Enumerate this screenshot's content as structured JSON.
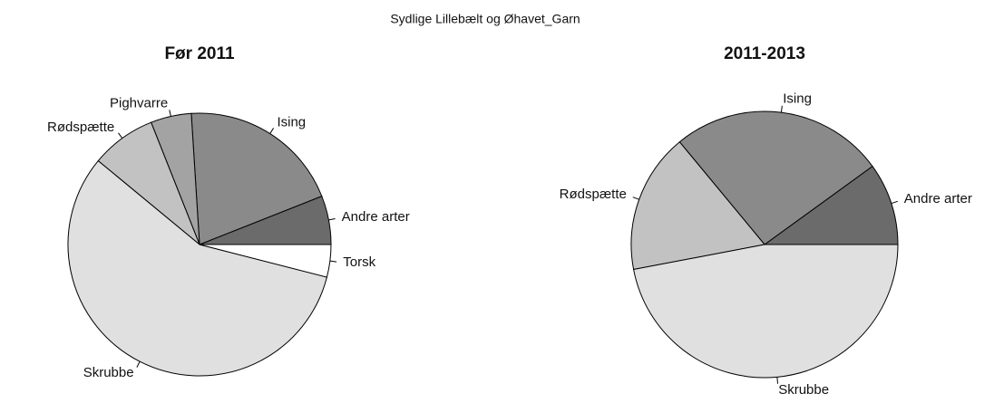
{
  "title": "Sydlige Lillebælt og Øhavet_Garn",
  "chart_data": [
    {
      "type": "pie",
      "title": "Før 2011",
      "categories": [
        "Andre arter",
        "Ising",
        "Pighvarre",
        "Rødspætte",
        "Skrubbe",
        "Torsk"
      ],
      "values": [
        6,
        20,
        5,
        8,
        57,
        4
      ],
      "colors": [
        "#6b6b6b",
        "#8a8a8a",
        "#a3a3a3",
        "#c2c2c2",
        "#e0e0e0",
        "#ffffff"
      ]
    },
    {
      "type": "pie",
      "title": "2011-2013",
      "categories": [
        "Andre arter",
        "Ising",
        "Rødspætte",
        "Skrubbe"
      ],
      "values": [
        10,
        26,
        17,
        47
      ],
      "colors": [
        "#6b6b6b",
        "#8a8a8a",
        "#c2c2c2",
        "#e0e0e0"
      ]
    }
  ]
}
